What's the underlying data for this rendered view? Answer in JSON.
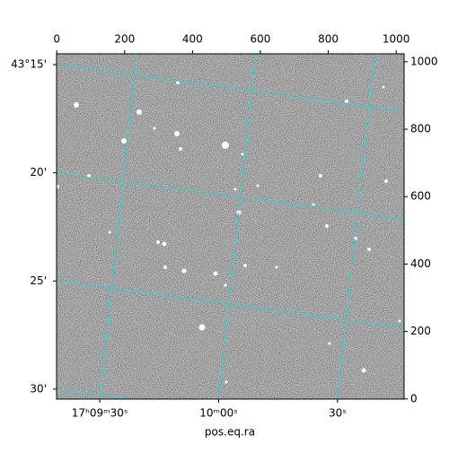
{
  "chart_data": {
    "type": "image",
    "xlabel": "pos.eq.ra",
    "xlim": [
      -0.5,
      1023.5
    ],
    "xticks": [
      0,
      200,
      400,
      600,
      800,
      1000
    ],
    "ylim": [
      -0.5,
      1023.5
    ],
    "yticks": [
      0,
      200,
      400,
      600,
      800,
      1000
    ],
    "ra_lim": [
      19.1,
      106.8
    ],
    "ra_ticks": [
      {
        "value": 30,
        "label": "17ʰ09ᵐ30ˢ"
      },
      {
        "value": 60,
        "label": "10ᵐ00ˢ"
      },
      {
        "value": 90,
        "label": "30ˢ"
      }
    ],
    "dec_lim": [
      14.5,
      30.46
    ],
    "dec_ticks": [
      {
        "value": 15,
        "label": "43°15'"
      },
      {
        "value": 20,
        "label": "20'"
      },
      {
        "value": 25,
        "label": "25'"
      },
      {
        "value": 30,
        "label": "30'"
      }
    ],
    "grid_color": "#00e5e5"
  }
}
